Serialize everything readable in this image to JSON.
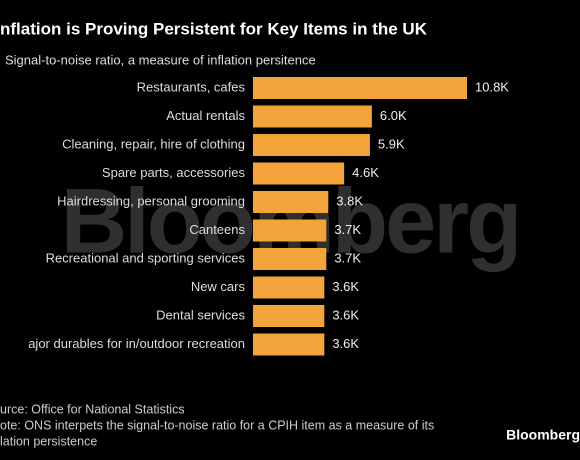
{
  "chart_data": {
    "type": "bar",
    "orientation": "horizontal",
    "title": "nflation is Proving Persistent for Key Items in the UK",
    "subtitle": "Signal-to-noise ratio, a measure of inflation persitence",
    "categories": [
      "Restaurants, cafes",
      "Actual rentals",
      "Cleaning, repair, hire of clothing",
      "Spare parts, accessories",
      "Hairdressing, personal grooming",
      "Canteens",
      "Recreational and sporting services",
      "New cars",
      "Dental services",
      "ajor durables for in/outdoor recreation"
    ],
    "values": [
      10800,
      6000,
      5900,
      4600,
      3800,
      3700,
      3700,
      3600,
      3600,
      3600
    ],
    "value_labels": [
      "10.8K",
      "6.0K",
      "5.9K",
      "4.6K",
      "3.8K",
      "3.7K",
      "3.7K",
      "3.6K",
      "3.6K",
      "3.6K"
    ],
    "color": "#f2a33a",
    "watermark": "Bloomberg",
    "source": "urce: Office for National Statistics",
    "note": [
      "ote: ONS interpets the signal-to-noise ratio for a CPIH item as a measure of its",
      "lation persistence"
    ],
    "logo": "Bloomberg"
  }
}
